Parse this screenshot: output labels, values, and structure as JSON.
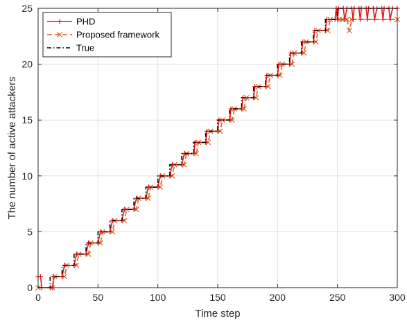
{
  "chart_data": {
    "type": "line",
    "title": "",
    "xlabel": "Time step",
    "ylabel": "The number of active attackers",
    "xlim": [
      0,
      300
    ],
    "ylim": [
      0,
      25
    ],
    "xticks": [
      0,
      50,
      100,
      150,
      200,
      250,
      300
    ],
    "yticks": [
      0,
      5,
      10,
      15,
      20,
      25
    ],
    "grid": true,
    "legend_position": "top-left",
    "series": [
      {
        "name": "PHD",
        "color": "#e8161b",
        "style": "solid",
        "marker": "plus",
        "points": [
          [
            0,
            1
          ],
          [
            2,
            1
          ],
          [
            3,
            0
          ],
          [
            10,
            0
          ],
          [
            12,
            0
          ],
          [
            13,
            1
          ],
          [
            20,
            1
          ],
          [
            22,
            2
          ],
          [
            30,
            2
          ],
          [
            32,
            3
          ],
          [
            40,
            3
          ],
          [
            42,
            4
          ],
          [
            50,
            4
          ],
          [
            52,
            5
          ],
          [
            60,
            5
          ],
          [
            62,
            6
          ],
          [
            70,
            6
          ],
          [
            72,
            7
          ],
          [
            80,
            7
          ],
          [
            82,
            8
          ],
          [
            90,
            8
          ],
          [
            92,
            9
          ],
          [
            100,
            9
          ],
          [
            102,
            10
          ],
          [
            110,
            10
          ],
          [
            112,
            11
          ],
          [
            120,
            11
          ],
          [
            122,
            12
          ],
          [
            130,
            12
          ],
          [
            131,
            13
          ],
          [
            140,
            13
          ],
          [
            141,
            14
          ],
          [
            150,
            14
          ],
          [
            151,
            15
          ],
          [
            160,
            15
          ],
          [
            161,
            16
          ],
          [
            170,
            16
          ],
          [
            171,
            17
          ],
          [
            180,
            17
          ],
          [
            181,
            18
          ],
          [
            190,
            18
          ],
          [
            191,
            19
          ],
          [
            200,
            19
          ],
          [
            201,
            20
          ],
          [
            210,
            20
          ],
          [
            211,
            21
          ],
          [
            220,
            21
          ],
          [
            221,
            22
          ],
          [
            230,
            22
          ],
          [
            231,
            23
          ],
          [
            240,
            23
          ],
          [
            241,
            24
          ],
          [
            248,
            24
          ],
          [
            249,
            25
          ],
          [
            250,
            24
          ],
          [
            251,
            25
          ],
          [
            255,
            25
          ],
          [
            256,
            24
          ],
          [
            258,
            25
          ],
          [
            262,
            25
          ],
          [
            263,
            24
          ],
          [
            264,
            25
          ],
          [
            268,
            25
          ],
          [
            269,
            24
          ],
          [
            270,
            25
          ],
          [
            274,
            25
          ],
          [
            275,
            24
          ],
          [
            276,
            25
          ],
          [
            280,
            25
          ],
          [
            281,
            24
          ],
          [
            283,
            25
          ],
          [
            287,
            25
          ],
          [
            288,
            24
          ],
          [
            289,
            25
          ],
          [
            293,
            25
          ],
          [
            294,
            24
          ],
          [
            296,
            25
          ],
          [
            300,
            25
          ]
        ]
      },
      {
        "name": "Proposed framework",
        "color": "#d95f1e",
        "style": "dashed",
        "marker": "x",
        "points": [
          [
            0,
            0
          ],
          [
            12,
            0
          ],
          [
            14,
            1
          ],
          [
            22,
            1
          ],
          [
            24,
            2
          ],
          [
            32,
            2
          ],
          [
            34,
            3
          ],
          [
            42,
            3
          ],
          [
            44,
            4
          ],
          [
            52,
            4
          ],
          [
            54,
            5
          ],
          [
            62,
            5
          ],
          [
            64,
            6
          ],
          [
            72,
            6
          ],
          [
            74,
            7
          ],
          [
            82,
            7
          ],
          [
            84,
            8
          ],
          [
            92,
            8
          ],
          [
            94,
            9
          ],
          [
            102,
            9
          ],
          [
            104,
            10
          ],
          [
            112,
            10
          ],
          [
            114,
            11
          ],
          [
            122,
            11
          ],
          [
            124,
            12
          ],
          [
            132,
            12
          ],
          [
            134,
            13
          ],
          [
            142,
            13
          ],
          [
            144,
            14
          ],
          [
            152,
            14
          ],
          [
            154,
            15
          ],
          [
            162,
            15
          ],
          [
            164,
            16
          ],
          [
            172,
            16
          ],
          [
            174,
            17
          ],
          [
            182,
            17
          ],
          [
            184,
            18
          ],
          [
            192,
            18
          ],
          [
            194,
            19
          ],
          [
            202,
            19
          ],
          [
            204,
            20
          ],
          [
            212,
            20
          ],
          [
            214,
            21
          ],
          [
            222,
            21
          ],
          [
            224,
            22
          ],
          [
            232,
            22
          ],
          [
            234,
            23
          ],
          [
            242,
            23
          ],
          [
            244,
            24
          ],
          [
            252,
            24
          ],
          [
            254,
            24
          ],
          [
            258,
            24
          ],
          [
            260,
            23
          ],
          [
            262,
            24
          ],
          [
            300,
            24
          ]
        ]
      },
      {
        "name": "True",
        "color": "#000000",
        "style": "dashdot",
        "marker": "none",
        "points": [
          [
            0,
            0
          ],
          [
            10,
            0
          ],
          [
            10,
            1
          ],
          [
            20,
            1
          ],
          [
            20,
            2
          ],
          [
            30,
            2
          ],
          [
            30,
            3
          ],
          [
            40,
            3
          ],
          [
            40,
            4
          ],
          [
            50,
            4
          ],
          [
            50,
            5
          ],
          [
            60,
            5
          ],
          [
            60,
            6
          ],
          [
            70,
            6
          ],
          [
            70,
            7
          ],
          [
            80,
            7
          ],
          [
            80,
            8
          ],
          [
            90,
            8
          ],
          [
            90,
            9
          ],
          [
            100,
            9
          ],
          [
            100,
            10
          ],
          [
            110,
            10
          ],
          [
            110,
            11
          ],
          [
            120,
            11
          ],
          [
            120,
            12
          ],
          [
            130,
            12
          ],
          [
            130,
            13
          ],
          [
            140,
            13
          ],
          [
            140,
            14
          ],
          [
            150,
            14
          ],
          [
            150,
            15
          ],
          [
            160,
            15
          ],
          [
            160,
            16
          ],
          [
            170,
            16
          ],
          [
            170,
            17
          ],
          [
            180,
            17
          ],
          [
            180,
            18
          ],
          [
            190,
            18
          ],
          [
            190,
            19
          ],
          [
            200,
            19
          ],
          [
            200,
            20
          ],
          [
            210,
            20
          ],
          [
            210,
            21
          ],
          [
            220,
            21
          ],
          [
            220,
            22
          ],
          [
            230,
            22
          ],
          [
            230,
            23
          ],
          [
            240,
            23
          ],
          [
            240,
            24
          ],
          [
            250,
            24
          ],
          [
            250,
            25
          ],
          [
            300,
            25
          ]
        ]
      }
    ]
  }
}
